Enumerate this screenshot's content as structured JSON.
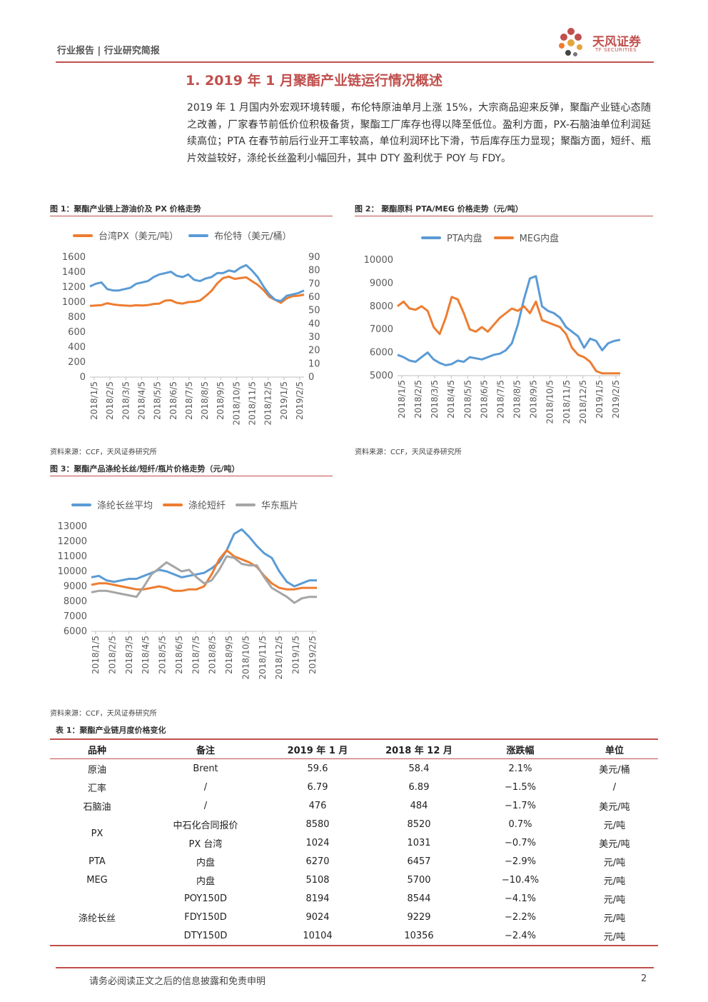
{
  "header": {
    "left_text": "行业报告 | 行业研究简报",
    "logo_name": "天风证券",
    "logo_sub": "TF SECURITIES"
  },
  "section": {
    "title": "1. 2019 年 1 月聚酯产业链运行情况概述",
    "paragraph": "2019 年 1 月国内外宏观环境转暖，布伦特原油单月上涨 15%，大宗商品迎来反弹，聚酯产业链心态随之改善，厂家春节前低价位积极备货，聚酯工厂库存也得以降至低位。盈利方面，PX-石脑油单位利润延续高位；PTA 在春节前后行业开工率较高，单位利润环比下滑，节后库存压力显现；聚酯方面，短纤、瓶片效益较好，涤纶长丝盈利小幅回升，其中 DTY 盈利优于 POY 与 FDY。"
  },
  "colors": {
    "accent": "#c0504d",
    "blue": "#5b9bd5",
    "orange": "#ed7d31",
    "gray": "#a5a5a5"
  },
  "chart_data": [
    {
      "type": "line",
      "title": "图 1：聚酯产业链上游油价及 PX 价格走势",
      "source": "资料来源：CCF，天风证券研究所",
      "x_labels": [
        "2018/1/5",
        "2018/2/5",
        "2018/3/5",
        "2018/4/5",
        "2018/5/5",
        "2018/6/5",
        "2018/7/5",
        "2018/8/5",
        "2018/9/5",
        "2018/10/5",
        "2018/11/5",
        "2018/12/5",
        "2019/1/5",
        "2019/2/5"
      ],
      "y_ticks": [
        "1600",
        "1400",
        "1200",
        "1000",
        "800",
        "600",
        "400",
        "200",
        "0"
      ],
      "y2_ticks": [
        "90",
        "80",
        "70",
        "60",
        "50",
        "40",
        "30",
        "20",
        "10",
        "0"
      ],
      "ylim": [
        0,
        1600
      ],
      "y2lim": [
        0,
        90
      ],
      "series": [
        {
          "name": "台湾PX（美元/吨）",
          "axis": "left",
          "color": "#ed7d31",
          "values": [
            950,
            955,
            960,
            985,
            970,
            960,
            955,
            950,
            958,
            955,
            960,
            975,
            980,
            1020,
            1025,
            990,
            980,
            1000,
            1005,
            1020,
            1080,
            1150,
            1250,
            1320,
            1340,
            1310,
            1320,
            1330,
            1280,
            1230,
            1160,
            1070,
            1030,
            990,
            1050,
            1080,
            1085,
            1100
          ]
        },
        {
          "name": "布伦特（美元/桶）",
          "axis": "right",
          "color": "#5b9bd5",
          "values": [
            68,
            70,
            71,
            66,
            65,
            65,
            66,
            67,
            70,
            71,
            72,
            75,
            77,
            78,
            79,
            76,
            75,
            77,
            73,
            72,
            74,
            75,
            78,
            78,
            80,
            79,
            82,
            84,
            80,
            75,
            68,
            62,
            58,
            57,
            61,
            62,
            63,
            65
          ]
        }
      ]
    },
    {
      "type": "line",
      "title": "图 2：  聚酯原料 PTA/MEG 价格走势（元/吨）",
      "source": "资料来源：CCF，天风证券研究所",
      "x_labels": [
        "2018/1/5",
        "2018/2/5",
        "2018/3/5",
        "2018/4/5",
        "2018/5/5",
        "2018/6/5",
        "2018/7/5",
        "2018/8/5",
        "2018/9/5",
        "2018/10/5",
        "2018/11/5",
        "2018/12/5",
        "2019/1/5",
        "2019/2/5"
      ],
      "y_ticks": [
        "10000",
        "9000",
        "8000",
        "7000",
        "6000",
        "5000"
      ],
      "ylim": [
        5000,
        10000
      ],
      "series": [
        {
          "name": "PTA内盘",
          "color": "#5b9bd5",
          "values": [
            5900,
            5800,
            5650,
            5600,
            5800,
            6000,
            5700,
            5550,
            5450,
            5500,
            5650,
            5600,
            5800,
            5750,
            5700,
            5800,
            5900,
            5950,
            6100,
            6400,
            7200,
            8300,
            9200,
            9300,
            8000,
            7800,
            7700,
            7500,
            7100,
            6900,
            6700,
            6200,
            6600,
            6500,
            6100,
            6400,
            6500,
            6550
          ]
        },
        {
          "name": "MEG内盘",
          "color": "#ed7d31",
          "values": [
            8000,
            8200,
            7900,
            7850,
            8000,
            7800,
            7100,
            6800,
            7500,
            8400,
            8300,
            7700,
            7000,
            6900,
            7100,
            6900,
            7200,
            7500,
            7700,
            7900,
            7800,
            8000,
            7700,
            8200,
            7400,
            7300,
            7200,
            7100,
            6800,
            6200,
            5900,
            5800,
            5600,
            5200,
            5100,
            5100,
            5100,
            5100
          ]
        }
      ]
    },
    {
      "type": "line",
      "title": "图 3：聚酯产品涤纶长丝/短纤/瓶片价格走势（元/吨）",
      "source": "资料来源：CCF，天风证券研究所",
      "x_labels": [
        "2018/1/5",
        "2018/2/5",
        "2018/3/5",
        "2018/4/5",
        "2018/5/5",
        "2018/6/5",
        "2018/7/5",
        "2018/8/5",
        "2018/9/5",
        "2018/10/5",
        "2018/11/5",
        "2018/12/5",
        "2019/1/5",
        "2019/2/5"
      ],
      "y_ticks": [
        "13000",
        "12000",
        "11000",
        "10000",
        "9000",
        "8000",
        "7000",
        "6000"
      ],
      "ylim": [
        6000,
        13000
      ],
      "series": [
        {
          "name": "涤纶长丝平均",
          "color": "#5b9bd5",
          "values": [
            9600,
            9700,
            9400,
            9300,
            9400,
            9500,
            9500,
            9700,
            9900,
            10100,
            10000,
            9800,
            9600,
            9700,
            9800,
            9900,
            10200,
            10600,
            11400,
            12500,
            12800,
            12300,
            11700,
            11200,
            10900,
            10000,
            9300,
            9000,
            9200,
            9400,
            9400
          ]
        },
        {
          "name": "涤纶短纤",
          "color": "#ed7d31",
          "values": [
            9100,
            9200,
            9200,
            9100,
            9000,
            8900,
            8800,
            8800,
            8900,
            9000,
            8900,
            8700,
            8700,
            8800,
            8800,
            9000,
            9800,
            10800,
            11400,
            11000,
            10800,
            10600,
            10300,
            9700,
            9200,
            8900,
            8800,
            8800,
            8900,
            8900,
            8900
          ]
        },
        {
          "name": "华东瓶片",
          "color": "#a5a5a5",
          "values": [
            8600,
            8700,
            8700,
            8600,
            8500,
            8400,
            8300,
            9000,
            9800,
            10200,
            10600,
            10300,
            10000,
            10100,
            9600,
            9200,
            9400,
            10100,
            11000,
            10900,
            10500,
            10400,
            10400,
            9600,
            8900,
            8600,
            8300,
            7900,
            8200,
            8300,
            8300
          ]
        }
      ]
    }
  ],
  "table": {
    "caption": "表 1：聚酯产业链月度价格变化",
    "headers": [
      "品种",
      "备注",
      "2019 年 1 月",
      "2018 年 12 月",
      "涨跌幅",
      "单位"
    ],
    "rows": [
      {
        "cat": "原油",
        "note": "Brent",
        "jan": "59.6",
        "dec": "58.4",
        "chg": "2.1%",
        "unit": "美元/桶"
      },
      {
        "cat": "汇率",
        "note": "/",
        "jan": "6.79",
        "dec": "6.89",
        "chg": "−1.5%",
        "unit": "/"
      },
      {
        "cat": "石脑油",
        "note": "/",
        "jan": "476",
        "dec": "484",
        "chg": "−1.7%",
        "unit": "美元/吨"
      },
      {
        "cat": "PX",
        "note": "中石化合同报价",
        "jan": "8580",
        "dec": "8520",
        "chg": "0.7%",
        "unit": "元/吨"
      },
      {
        "cat": "",
        "note": "PX 台湾",
        "jan": "1024",
        "dec": "1031",
        "chg": "−0.7%",
        "unit": "美元/吨"
      },
      {
        "cat": "PTA",
        "note": "内盘",
        "jan": "6270",
        "dec": "6457",
        "chg": "−2.9%",
        "unit": "元/吨"
      },
      {
        "cat": "MEG",
        "note": "内盘",
        "jan": "5108",
        "dec": "5700",
        "chg": "−10.4%",
        "unit": "元/吨"
      },
      {
        "cat": "",
        "note": "POY150D",
        "jan": "8194",
        "dec": "8544",
        "chg": "−4.1%",
        "unit": "元/吨"
      },
      {
        "cat": "涤纶长丝",
        "note": "FDY150D",
        "jan": "9024",
        "dec": "9229",
        "chg": "−2.2%",
        "unit": "元/吨"
      },
      {
        "cat": "",
        "note": "DTY150D",
        "jan": "10104",
        "dec": "10356",
        "chg": "−2.4%",
        "unit": "元/吨"
      }
    ]
  },
  "footer": {
    "disclaimer": "请务必阅读正文之后的信息披露和免责申明",
    "page": "2"
  }
}
